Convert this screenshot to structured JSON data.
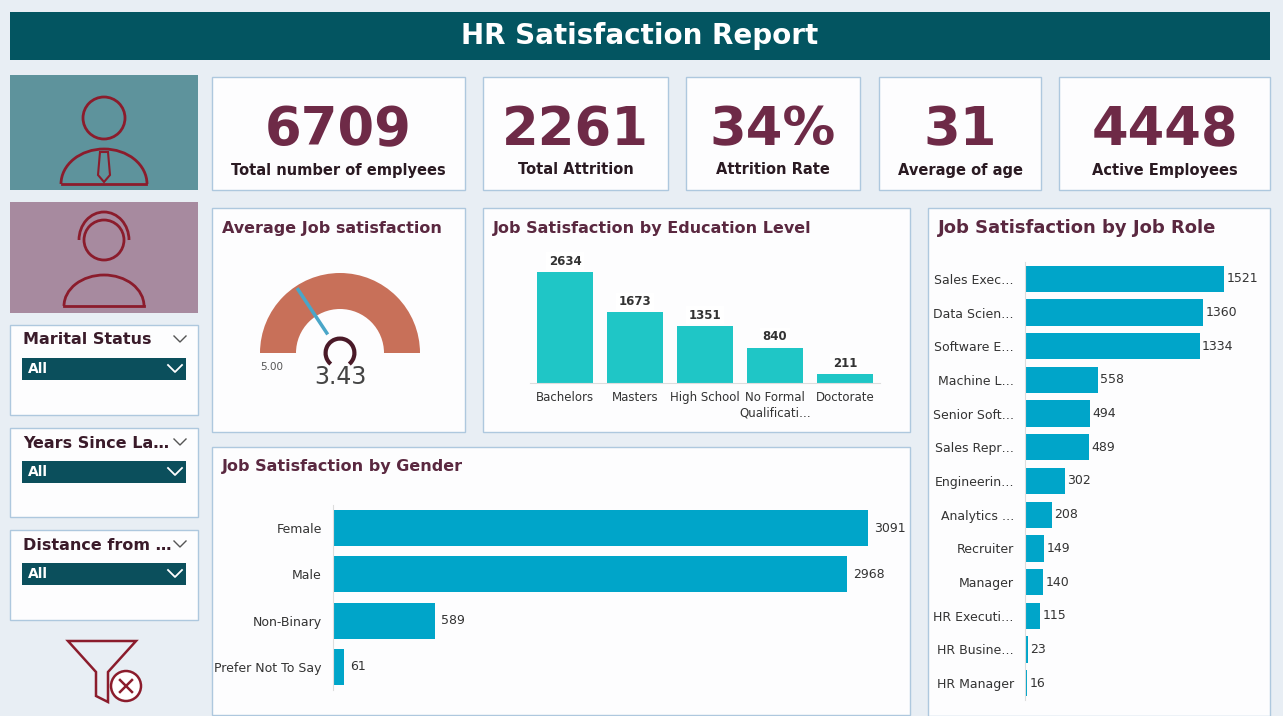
{
  "header": {
    "title": "HR Satisfaction Report"
  },
  "kpis": [
    {
      "value": "6709",
      "label": "Total number of emplyees"
    },
    {
      "value": "2261",
      "label": "Total Attrition"
    },
    {
      "value": "34%",
      "label": "Attrition Rate"
    },
    {
      "value": "31",
      "label": "Average of age"
    },
    {
      "value": "4448",
      "label": "Active Employees"
    }
  ],
  "filters": [
    {
      "label": "Marital Status",
      "value": "All"
    },
    {
      "label": "Years Since La…",
      "value": "All"
    },
    {
      "label": "Distance from …",
      "value": "All"
    }
  ],
  "chart_data": [
    {
      "type": "gauge",
      "title": "Average Job satisfaction",
      "value": 3.43,
      "ylim": [
        0,
        5
      ],
      "yticks": [
        {
          "value": 5,
          "label": "5.00"
        }
      ],
      "color": "#c87059",
      "data_labels": true
    },
    {
      "type": "bar",
      "title": "Job Satisfaction by Education Level",
      "categories": [
        "Bachelors",
        "Masters",
        "High School",
        "No Formal Qualificati…",
        "Doctorate"
      ],
      "values": [
        2634,
        1673,
        1351,
        840,
        211
      ],
      "color": "#1fc6c6",
      "data_labels": true,
      "tick_labels": "x"
    },
    {
      "type": "bar",
      "orientation": "horizontal",
      "title": "Job Satisfaction by Gender",
      "categories": [
        "Female",
        "Male",
        "Non-Binary",
        "Prefer Not To Say"
      ],
      "values": [
        3091,
        2968,
        589,
        61
      ],
      "color": "#00a5c9",
      "data_labels": true,
      "tick_labels": "y"
    },
    {
      "type": "bar",
      "orientation": "horizontal",
      "title": "Job Satisfaction by Job Role",
      "categories": [
        "Sales Exec…",
        "Data Scien…",
        "Software E…",
        "Machine L…",
        "Senior Soft…",
        "Sales Repr…",
        "Engineerin…",
        "Analytics …",
        "Recruiter",
        "Manager",
        "HR Executi…",
        "HR Busine…",
        "HR Manager"
      ],
      "values": [
        1521,
        1360,
        1334,
        558,
        494,
        489,
        302,
        208,
        149,
        140,
        115,
        23,
        16
      ],
      "color": "#00a5c9",
      "data_labels": true,
      "tick_labels": "y"
    }
  ]
}
